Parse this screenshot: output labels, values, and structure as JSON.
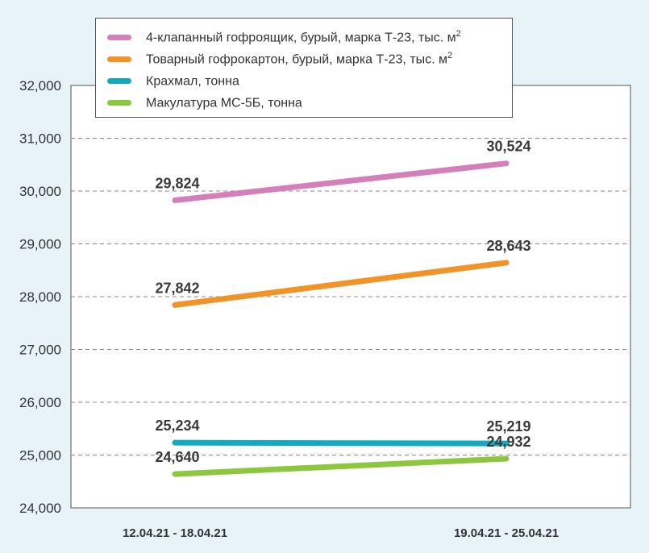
{
  "chart_data": {
    "type": "line",
    "categories": [
      "12.04.21 - 18.04.21",
      "19.04.21 - 25.04.21"
    ],
    "ylim": [
      24000,
      32000
    ],
    "yticks": [
      "24,000",
      "25,000",
      "26,000",
      "27,000",
      "28,000",
      "29,000",
      "30,000",
      "31,000",
      "32,000"
    ],
    "ytick_values": [
      24000,
      25000,
      26000,
      27000,
      28000,
      29000,
      30000,
      31000,
      32000
    ],
    "grid": true,
    "legend_position": "top",
    "series": [
      {
        "name": "4-клапанный гофроящик, бурый, марка Т-23, тыс. м",
        "unit_sup": "2",
        "color": "#d57fba",
        "values": [
          29824,
          30524
        ],
        "labels": [
          "29,824",
          "30,524"
        ]
      },
      {
        "name": "Товарный гофрокартон, бурый, марка Т-23, тыс. м",
        "unit_sup": "2",
        "color": "#f0942a",
        "values": [
          27842,
          28643
        ],
        "labels": [
          "27,842",
          "28,643"
        ]
      },
      {
        "name": "Крахмал, тонна",
        "unit_sup": "",
        "color": "#14a9be",
        "values": [
          25234,
          25219
        ],
        "labels": [
          "25,234",
          "25,219"
        ]
      },
      {
        "name": "Макулатура МС-5Б, тонна",
        "unit_sup": "",
        "color": "#8dc63f",
        "values": [
          24640,
          24932
        ],
        "labels": [
          "24,640",
          "24,932"
        ]
      }
    ]
  }
}
